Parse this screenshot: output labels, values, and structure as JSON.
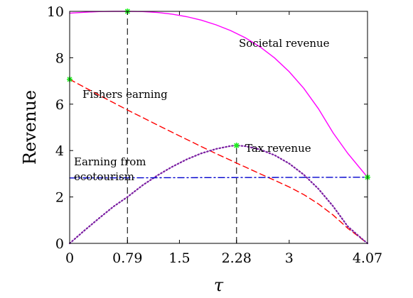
{
  "chart_data": {
    "type": "line",
    "xlabel": "τ",
    "ylabel": "Revenue",
    "xlim": [
      0,
      4.07
    ],
    "ylim": [
      0,
      10
    ],
    "xticks": [
      0,
      0.79,
      1.5,
      2.28,
      3,
      4.07
    ],
    "xtick_labels": [
      "0",
      "0.79",
      "1.5",
      "2.28",
      "3",
      "4.07"
    ],
    "yticks": [
      0,
      2,
      4,
      6,
      8,
      10
    ],
    "ytick_labels": [
      "0",
      "2",
      "4",
      "6",
      "8",
      "10"
    ],
    "grid": false,
    "series": [
      {
        "label": "Societal revenue",
        "color": "#ff00ff",
        "style": "solid",
        "x": [
          0,
          0.2,
          0.4,
          0.6,
          0.79,
          1.0,
          1.2,
          1.4,
          1.6,
          1.8,
          2.0,
          2.2,
          2.4,
          2.6,
          2.8,
          3.0,
          3.2,
          3.4,
          3.6,
          3.8,
          4.07
        ],
        "y": [
          9.92,
          9.96,
          9.99,
          10.0,
          10.0,
          9.99,
          9.95,
          9.88,
          9.77,
          9.62,
          9.42,
          9.17,
          8.86,
          8.47,
          7.99,
          7.4,
          6.68,
          5.8,
          4.76,
          3.88,
          2.85
        ]
      },
      {
        "label": "Fishers earning",
        "color": "#ff0000",
        "style": "dashed",
        "x": [
          0,
          0.2,
          0.4,
          0.6,
          0.79,
          1.0,
          1.2,
          1.4,
          1.6,
          1.8,
          2.0,
          2.2,
          2.28,
          2.4,
          2.6,
          2.8,
          3.0,
          3.2,
          3.4,
          3.6,
          3.8,
          4.07
        ],
        "y": [
          7.07,
          6.73,
          6.39,
          6.06,
          5.75,
          5.42,
          5.1,
          4.79,
          4.48,
          4.17,
          3.87,
          3.58,
          3.46,
          3.29,
          3.0,
          2.72,
          2.43,
          2.1,
          1.7,
          1.22,
          0.65,
          0.0
        ]
      },
      {
        "label": "Tax revenue",
        "color": "#7b1fa2",
        "style": "dotted",
        "x": [
          0,
          0.2,
          0.4,
          0.6,
          0.79,
          1.0,
          1.2,
          1.4,
          1.6,
          1.8,
          2.0,
          2.2,
          2.28,
          2.4,
          2.6,
          2.8,
          3.0,
          3.2,
          3.4,
          3.6,
          3.8,
          4.0,
          4.07
        ],
        "y": [
          0.0,
          0.55,
          1.08,
          1.59,
          2.0,
          2.51,
          2.93,
          3.3,
          3.62,
          3.88,
          4.07,
          4.2,
          4.22,
          4.19,
          4.05,
          3.8,
          3.44,
          2.96,
          2.35,
          1.6,
          0.73,
          0.18,
          0.0
        ]
      },
      {
        "label": "Earning from ecotourism",
        "color": "#0000cd",
        "style": "dashdot",
        "x": [
          0,
          4.07
        ],
        "y": [
          2.82,
          2.85
        ]
      }
    ],
    "markers": [
      {
        "x": 0,
        "y": 7.07
      },
      {
        "x": 0.79,
        "y": 10.0
      },
      {
        "x": 2.28,
        "y": 4.22
      },
      {
        "x": 4.07,
        "y": 2.85
      }
    ],
    "reference_lines": [
      {
        "x": 0.79,
        "y_top": 10.0
      },
      {
        "x": 2.28,
        "y_top": 4.22
      }
    ],
    "annotations": [
      {
        "text": "Societal revenue",
        "series": 0
      },
      {
        "text": "Fishers earning",
        "series": 1
      },
      {
        "text": "Tax revenue",
        "series": 2
      },
      {
        "text": "Earning from",
        "series": 3
      },
      {
        "text": "ecotourism",
        "series": 3
      }
    ]
  }
}
